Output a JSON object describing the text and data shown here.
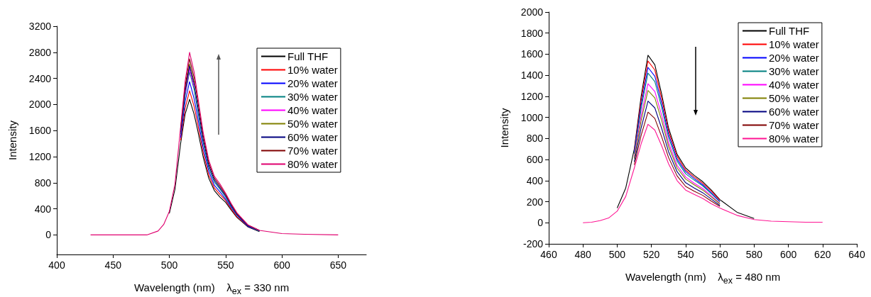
{
  "chart_data": [
    {
      "type": "line",
      "xlabel": "Wavelength (nm)    λ$_{ex}$ = 330 nm",
      "ylabel": "Intensity",
      "xlim": [
        400,
        675
      ],
      "xticks": [
        400,
        450,
        500,
        550,
        600,
        650
      ],
      "ylim": [
        -300,
        3200
      ],
      "yticks": [
        0,
        400,
        800,
        1200,
        1600,
        2000,
        2400,
        2800,
        3200
      ],
      "grid": false,
      "legend": "top right",
      "marker": "none",
      "line_style": "solid",
      "x": [
        430,
        470,
        480,
        490,
        495,
        500,
        505,
        510,
        514,
        518,
        522,
        525,
        530,
        535,
        540,
        545,
        550,
        555,
        560,
        570,
        580,
        600,
        620,
        650
      ],
      "series": [
        {
          "name": "Full THF",
          "color": "#000000",
          "values": [
            null,
            null,
            null,
            null,
            null,
            330,
            700,
            1400,
            1850,
            2080,
            1850,
            1620,
            1200,
            870,
            680,
            580,
            500,
            380,
            270,
            120,
            50,
            null,
            null,
            null
          ]
        },
        {
          "name": "10% water",
          "color": "#ff0000",
          "values": [
            null,
            null,
            null,
            null,
            null,
            null,
            null,
            1450,
            1940,
            2210,
            1970,
            1720,
            1270,
            920,
            720,
            620,
            530,
            400,
            280,
            130,
            60,
            null,
            null,
            null
          ]
        },
        {
          "name": "20% water",
          "color": "#0000ff",
          "values": [
            null,
            null,
            null,
            null,
            null,
            null,
            null,
            1490,
            2040,
            2350,
            2090,
            1820,
            1340,
            980,
            760,
            660,
            550,
            420,
            300,
            130,
            60,
            null,
            null,
            null
          ]
        },
        {
          "name": "30% water",
          "color": "#008080",
          "values": [
            null,
            null,
            null,
            null,
            null,
            null,
            null,
            1550,
            2140,
            2500,
            2230,
            1930,
            1420,
            1030,
            810,
            700,
            580,
            440,
            310,
            140,
            60,
            null,
            null,
            null
          ]
        },
        {
          "name": "40% water",
          "color": "#ff00ff",
          "values": [
            null,
            null,
            null,
            null,
            null,
            null,
            null,
            null,
            2170,
            2550,
            2270,
            null,
            null,
            null,
            null,
            null,
            null,
            null,
            null,
            null,
            null,
            null,
            null,
            null
          ]
        },
        {
          "name": "50% water",
          "color": "#808000",
          "values": [
            null,
            null,
            null,
            null,
            null,
            null,
            null,
            null,
            2230,
            2620,
            2340,
            null,
            null,
            null,
            null,
            null,
            null,
            null,
            null,
            null,
            null,
            null,
            null,
            null
          ]
        },
        {
          "name": "60% water",
          "color": "#000080",
          "values": [
            null,
            null,
            null,
            null,
            null,
            null,
            null,
            1580,
            2200,
            2590,
            2310,
            2000,
            1470,
            1070,
            840,
            720,
            600,
            450,
            320,
            140,
            70,
            null,
            null,
            null
          ]
        },
        {
          "name": "70% water",
          "color": "#800000",
          "values": [
            null,
            null,
            null,
            null,
            null,
            null,
            null,
            1620,
            2280,
            2700,
            2410,
            2080,
            1530,
            1110,
            870,
            750,
            620,
            470,
            330,
            150,
            70,
            null,
            null,
            null
          ]
        },
        {
          "name": "80% water",
          "color": "#e0006f",
          "values": [
            0,
            0,
            0,
            60,
            160,
            360,
            780,
            1650,
            2350,
            2800,
            2500,
            2150,
            1580,
            1150,
            900,
            780,
            640,
            480,
            340,
            150,
            70,
            20,
            10,
            0
          ]
        }
      ]
    },
    {
      "type": "line",
      "xlabel": "Wavelength (nm)    λ$_{ex}$ = 480 nm",
      "ylabel": "Intensity",
      "xlim": [
        460,
        640
      ],
      "xticks": [
        460,
        480,
        500,
        520,
        540,
        560,
        580,
        600,
        620,
        640
      ],
      "ylim": [
        -200,
        2000
      ],
      "yticks": [
        -200,
        0,
        200,
        400,
        600,
        800,
        1000,
        1200,
        1400,
        1600,
        1800,
        2000
      ],
      "grid": false,
      "legend": "top right",
      "marker": "none",
      "line_style": "solid",
      "x": [
        480,
        485,
        490,
        495,
        500,
        505,
        510,
        514,
        518,
        522,
        526,
        530,
        535,
        540,
        545,
        550,
        555,
        560,
        570,
        580,
        590,
        600,
        610,
        620
      ],
      "series": [
        {
          "name": "Full THF",
          "color": "#000000",
          "values": [
            null,
            null,
            null,
            null,
            140,
            330,
            700,
            1200,
            1590,
            1500,
            1220,
            900,
            650,
            520,
            450,
            390,
            310,
            220,
            100,
            40,
            null,
            null,
            null,
            null
          ]
        },
        {
          "name": "10% water",
          "color": "#ff0000",
          "values": [
            null,
            null,
            null,
            null,
            null,
            null,
            685,
            1160,
            1535,
            1450,
            1180,
            870,
            630,
            500,
            435,
            375,
            300,
            215,
            null,
            null,
            null,
            null,
            null,
            null
          ]
        },
        {
          "name": "20% water",
          "color": "#0000ff",
          "values": [
            null,
            null,
            null,
            null,
            null,
            null,
            670,
            1120,
            1475,
            1390,
            1135,
            840,
            605,
            485,
            420,
            360,
            285,
            205,
            null,
            null,
            null,
            null,
            null,
            null
          ]
        },
        {
          "name": "30% water",
          "color": "#008080",
          "values": [
            null,
            null,
            null,
            null,
            null,
            null,
            655,
            1085,
            1420,
            1340,
            1095,
            810,
            585,
            465,
            405,
            350,
            275,
            200,
            null,
            null,
            null,
            null,
            null,
            null
          ]
        },
        {
          "name": "40% water",
          "color": "#ff00ff",
          "values": [
            null,
            null,
            null,
            null,
            null,
            null,
            625,
            1015,
            1320,
            1245,
            1020,
            760,
            545,
            435,
            375,
            325,
            255,
            185,
            null,
            null,
            null,
            null,
            null,
            null
          ]
        },
        {
          "name": "50% water",
          "color": "#808000",
          "values": [
            null,
            null,
            null,
            null,
            null,
            null,
            610,
            970,
            1255,
            1185,
            970,
            725,
            520,
            415,
            360,
            310,
            245,
            180,
            null,
            null,
            null,
            null,
            null,
            null
          ]
        },
        {
          "name": "60% water",
          "color": "#000080",
          "values": [
            null,
            null,
            null,
            null,
            null,
            null,
            580,
            900,
            1155,
            1090,
            895,
            675,
            485,
            380,
            330,
            285,
            225,
            165,
            null,
            null,
            null,
            null,
            null,
            null
          ]
        },
        {
          "name": "70% water",
          "color": "#800000",
          "values": [
            null,
            null,
            null,
            null,
            null,
            null,
            550,
            830,
            1050,
            990,
            815,
            620,
            445,
            345,
            300,
            260,
            205,
            155,
            null,
            null,
            null,
            null,
            null,
            null
          ]
        },
        {
          "name": "80% water",
          "color": "#ff1493",
          "values": [
            0,
            5,
            20,
            45,
            110,
            250,
            520,
            750,
            935,
            880,
            730,
            560,
            400,
            310,
            270,
            230,
            180,
            140,
            70,
            30,
            15,
            10,
            5,
            5
          ]
        }
      ]
    }
  ]
}
